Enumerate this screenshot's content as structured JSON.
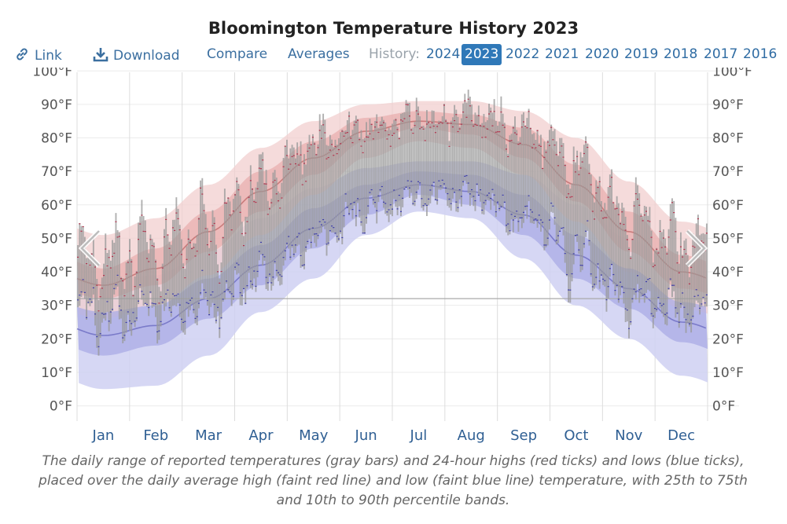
{
  "title": "Bloomington Temperature History 2023",
  "toolbar": {
    "link_label": "Link",
    "download_label": "Download",
    "compare_label": "Compare",
    "averages_label": "Averages",
    "history_label": "History:",
    "years": [
      "2024",
      "2023",
      "2022",
      "2021",
      "2020",
      "2019",
      "2018",
      "2017",
      "2016"
    ],
    "active_year": "2023",
    "link_icon": "link-icon",
    "download_icon": "download-icon"
  },
  "caption": "The daily range of reported temperatures (gray bars) and 24-hour highs (red ticks) and lows (blue ticks), placed over the daily average high (faint red line) and low (faint blue line) temperature, with 25th to 75th and 10th to 90th percentile bands.",
  "colors": {
    "high_band_outer": "#f2cfcf",
    "high_band_inner": "#e6a9a9",
    "low_band_outer": "#cfd0f2",
    "low_band_inner": "#a9abe6",
    "avg_high_line": "#c06b6b",
    "avg_low_line": "#6b6bc0",
    "range_bar": "#9a9a9a",
    "high_tick": "#b0304a",
    "low_tick": "#3a3aa8",
    "freezing_line": "#aaaaaa",
    "active_year_bg": "#2f78b8",
    "link_color": "#3b6fa0"
  },
  "chart_data": {
    "type": "bar",
    "subtype": "daily temperature range with climatological bands",
    "x_axis": {
      "labels": [
        "Jan",
        "Feb",
        "Mar",
        "Apr",
        "May",
        "Jun",
        "Jul",
        "Aug",
        "Sep",
        "Oct",
        "Nov",
        "Dec"
      ]
    },
    "y_axis": {
      "ticks": [
        "0°F",
        "10°F",
        "20°F",
        "30°F",
        "40°F",
        "50°F",
        "60°F",
        "70°F",
        "80°F",
        "90°F",
        "100°F"
      ],
      "ylim": [
        -13,
        101
      ],
      "unit": "°F",
      "both_sides": true
    },
    "freezing_line": 32,
    "grid": true,
    "climatology_monthly": {
      "months": [
        "Jan",
        "Feb",
        "Mar",
        "Apr",
        "May",
        "Jun",
        "Jul",
        "Aug",
        "Sep",
        "Oct",
        "Nov",
        "Dec"
      ],
      "avg_high": [
        36,
        41,
        52,
        64,
        74,
        82,
        85,
        84,
        78,
        66,
        52,
        40
      ],
      "avg_low": [
        21,
        24,
        32,
        42,
        53,
        62,
        66,
        64,
        57,
        45,
        35,
        25
      ],
      "high_p25": [
        32,
        36,
        46,
        58,
        69,
        79,
        83,
        81,
        74,
        61,
        46,
        35
      ],
      "high_p75": [
        41,
        47,
        58,
        70,
        79,
        86,
        88,
        87,
        83,
        72,
        58,
        45
      ],
      "high_p10": [
        26,
        30,
        39,
        51,
        63,
        74,
        79,
        77,
        69,
        55,
        40,
        29
      ],
      "high_p90": [
        51,
        56,
        66,
        77,
        85,
        90,
        91,
        91,
        88,
        80,
        67,
        55
      ],
      "low_p25": [
        15,
        18,
        26,
        36,
        47,
        57,
        63,
        60,
        51,
        38,
        29,
        19
      ],
      "low_p75": [
        28,
        30,
        38,
        48,
        59,
        66,
        70,
        69,
        63,
        51,
        41,
        31
      ],
      "low_p10": [
        5,
        6,
        15,
        28,
        38,
        51,
        58,
        56,
        44,
        30,
        20,
        9
      ],
      "low_p90": [
        37,
        39,
        46,
        56,
        65,
        71,
        73,
        73,
        69,
        60,
        50,
        40
      ]
    },
    "observed_monthly": {
      "months": [
        "Jan",
        "Feb",
        "Mar",
        "Apr",
        "May",
        "Jun",
        "Jul",
        "Aug",
        "Sep",
        "Oct",
        "Nov",
        "Dec"
      ],
      "typical_high": [
        41,
        47,
        51,
        64,
        76,
        82,
        85,
        85,
        81,
        69,
        55,
        47
      ],
      "typical_low": [
        28,
        30,
        31,
        40,
        50,
        59,
        64,
        63,
        57,
        45,
        33,
        31
      ],
      "max_high": [
        63,
        71,
        76,
        84,
        88,
        91,
        90,
        94,
        92,
        86,
        70,
        65
      ],
      "min_low": [
        10,
        18,
        17,
        28,
        39,
        48,
        58,
        56,
        48,
        25,
        18,
        16
      ]
    }
  }
}
